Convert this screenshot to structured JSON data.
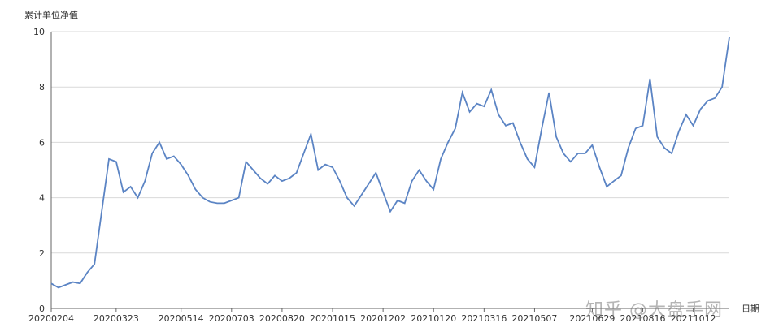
{
  "chart_data": {
    "type": "line",
    "title": "",
    "ylabel": "累计单位净值",
    "xlabel": "日期",
    "ylim": [
      0,
      10
    ],
    "yticks": [
      0,
      2,
      4,
      6,
      8,
      10
    ],
    "grid": true,
    "line_color": "#5b84c4",
    "x_tick_labels": [
      "20200204",
      "20200323",
      "20200514",
      "20200703",
      "20200820",
      "20201015",
      "20201202",
      "20210120",
      "20210316",
      "20210507",
      "20210629",
      "20210816",
      "20211012"
    ],
    "x": [
      "20200204",
      "20200210",
      "20200217",
      "20200224",
      "20200302",
      "20200306",
      "20200312",
      "20200316",
      "20200320",
      "20200323",
      "20200326",
      "20200330",
      "20200406",
      "20200413",
      "20200420",
      "20200427",
      "20200430",
      "20200508",
      "20200514",
      "20200521",
      "20200528",
      "20200604",
      "20200611",
      "20200618",
      "20200624",
      "20200703",
      "20200710",
      "20200717",
      "20200724",
      "20200731",
      "20200807",
      "20200814",
      "20200820",
      "20200827",
      "20200903",
      "20200910",
      "20200917",
      "20200924",
      "20200930",
      "20201015",
      "20201022",
      "20201029",
      "20201105",
      "20201112",
      "20201119",
      "20201126",
      "20201202",
      "20201209",
      "20201216",
      "20201223",
      "20201230",
      "20210107",
      "20210114",
      "20210120",
      "20210127",
      "20210203",
      "20210210",
      "20210224",
      "20210303",
      "20210310",
      "20210316",
      "20210323",
      "20210330",
      "20210407",
      "20210414",
      "20210421",
      "20210428",
      "20210507",
      "20210514",
      "20210521",
      "20210528",
      "20210604",
      "20210611",
      "20210618",
      "20210625",
      "20210629",
      "20210706",
      "20210713",
      "20210720",
      "20210727",
      "20210803",
      "20210810",
      "20210816",
      "20210823",
      "20210830",
      "20210906",
      "20210913",
      "20210922",
      "20210929",
      "20211012",
      "20211019",
      "20211026",
      "20211102",
      "20211109",
      "20211116"
    ],
    "series": [
      {
        "values": [
          0.9,
          0.75,
          0.85,
          0.95,
          0.9,
          1.3,
          1.6,
          3.5,
          5.4,
          5.3,
          4.2,
          4.4,
          4.0,
          4.6,
          5.6,
          6.0,
          5.4,
          5.5,
          5.2,
          4.8,
          4.3,
          4.0,
          3.85,
          3.8,
          3.8,
          3.9,
          4.0,
          5.3,
          5.0,
          4.7,
          4.5,
          4.8,
          4.6,
          4.7,
          4.9,
          5.6,
          6.3,
          5.0,
          5.2,
          5.1,
          4.6,
          4.0,
          3.7,
          4.1,
          4.5,
          4.9,
          4.2,
          3.5,
          3.9,
          3.8,
          4.6,
          5.0,
          4.6,
          4.3,
          5.4,
          6.0,
          6.5,
          7.8,
          7.1,
          7.4,
          7.3,
          7.9,
          7.0,
          6.6,
          6.7,
          6.0,
          5.4,
          5.1,
          6.5,
          7.8,
          6.2,
          5.6,
          5.3,
          5.6,
          5.6,
          5.9,
          5.1,
          4.4,
          4.6,
          4.8,
          5.8,
          6.5,
          6.6,
          8.3,
          6.2,
          5.8,
          5.6,
          6.4,
          7.0,
          6.6,
          7.2,
          7.5,
          7.6,
          8.0,
          9.8
        ]
      }
    ]
  },
  "watermark": "知乎 @大盘手网"
}
